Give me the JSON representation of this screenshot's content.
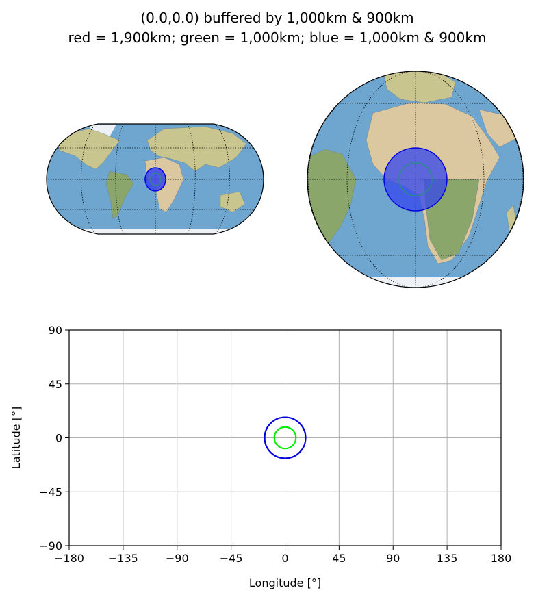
{
  "title": {
    "line1": "(0.0,0.0) buffered by 1,000km & 900km",
    "line2": "red = 1,900km; green = 1,000km; blue = 1,000km & 900km"
  },
  "colors": {
    "ocean": "#6fa6cf",
    "land": "#c9c58f",
    "land_dark": "#8ba66a",
    "desert": "#dcc8a0",
    "ice": "#eef2f6",
    "blue": "#0000dd",
    "blue_fill": "#3344ee",
    "green": "#00ee00",
    "teal": "#2a8a8a",
    "grid": "#b0b0b0"
  },
  "maps": [
    {
      "name": "robinson-map",
      "projection": "Robinson",
      "central_longitude": 0
    },
    {
      "name": "orthographic-map",
      "projection": "Orthographic",
      "central_longitude": 0,
      "central_latitude": 0
    }
  ],
  "chart_data": {
    "type": "scatter",
    "xlabel": "Longitude [°]",
    "ylabel": "Latitude [°]",
    "xlim": [
      -180,
      180
    ],
    "ylim": [
      -90,
      90
    ],
    "xticks": [
      -180,
      -135,
      -90,
      -45,
      0,
      45,
      90,
      135,
      180
    ],
    "yticks": [
      -90,
      -45,
      0,
      45,
      90
    ],
    "xtick_labels": [
      "−180",
      "−135",
      "−90",
      "−45",
      "0",
      "45",
      "90",
      "135",
      "180"
    ],
    "ytick_labels": [
      "−90",
      "−45",
      "0",
      "45",
      "90"
    ],
    "grid": true,
    "buffers": [
      {
        "color": "blue",
        "center": [
          0,
          0
        ],
        "radius_deg": 17.1
      },
      {
        "color": "green",
        "center": [
          0,
          0
        ],
        "radius_deg": 9.0
      }
    ]
  }
}
